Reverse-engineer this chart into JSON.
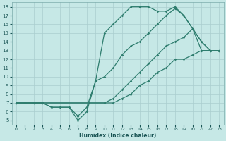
{
  "xlabel": "Humidex (Indice chaleur)",
  "xlim": [
    -0.5,
    23.5
  ],
  "ylim": [
    4.5,
    18.5
  ],
  "xticks": [
    0,
    1,
    2,
    3,
    4,
    5,
    6,
    7,
    8,
    9,
    10,
    11,
    12,
    13,
    14,
    15,
    16,
    17,
    18,
    19,
    20,
    21,
    22,
    23
  ],
  "yticks": [
    5,
    6,
    7,
    8,
    9,
    10,
    11,
    12,
    13,
    14,
    15,
    16,
    17,
    18
  ],
  "bg_color": "#c6e8e6",
  "line_color": "#2e7d6e",
  "grid_color": "#aacece",
  "line_a_x": [
    0,
    1,
    2,
    3,
    4,
    5,
    6,
    7,
    8,
    9,
    10,
    11,
    12,
    13,
    14,
    15,
    16,
    17,
    18,
    19,
    20,
    21,
    22,
    23
  ],
  "line_a_y": [
    7,
    7,
    7,
    7,
    6.5,
    6.5,
    6.5,
    5,
    6,
    9.5,
    15,
    16,
    17,
    18,
    18,
    18,
    17.5,
    17.5,
    18,
    17,
    15.5,
    14,
    13,
    13
  ],
  "line_b_x": [
    0,
    1,
    2,
    3,
    4,
    5,
    6,
    7,
    8,
    9,
    10,
    11,
    12,
    13,
    14,
    15,
    16,
    17,
    18,
    19,
    20,
    21,
    22,
    23
  ],
  "line_b_y": [
    7,
    7,
    7,
    7,
    6.5,
    6.5,
    6.5,
    5.5,
    6.5,
    9.5,
    10,
    11,
    12.5,
    13.5,
    14,
    15,
    16,
    17,
    17.8,
    17,
    15.5,
    14,
    13,
    13
  ],
  "line_c_x": [
    0,
    1,
    2,
    3,
    10,
    11,
    12,
    13,
    14,
    15,
    16,
    17,
    18,
    19,
    20,
    21,
    22,
    23
  ],
  "line_c_y": [
    7,
    7,
    7,
    7,
    7,
    7.5,
    8.5,
    9.5,
    10.5,
    11.5,
    12.5,
    13.5,
    14,
    14.5,
    15.5,
    13,
    13,
    13
  ],
  "line_d_x": [
    0,
    1,
    2,
    3,
    10,
    11,
    12,
    13,
    14,
    15,
    16,
    17,
    18,
    19,
    20,
    21,
    22,
    23
  ],
  "line_d_y": [
    7,
    7,
    7,
    7,
    7,
    7,
    7.5,
    8,
    9,
    9.5,
    10.5,
    11,
    12,
    12,
    12.5,
    13,
    13,
    13
  ]
}
